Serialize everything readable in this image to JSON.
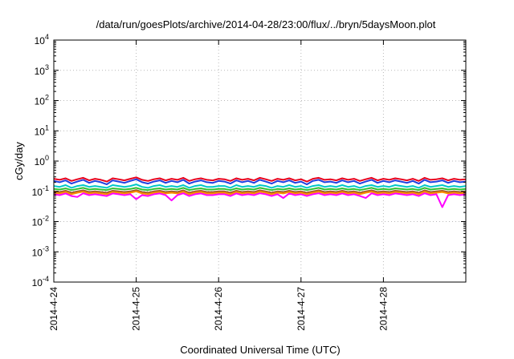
{
  "chart_data": {
    "type": "line",
    "title": "/data/run/goesPlots/archive/2014-04-28/23:00/flux/../bryn/5daysMoon.plot",
    "xlabel": "Coordinated Universal Time (UTC)",
    "ylabel": "cGy/day",
    "yscale": "log",
    "ylim": [
      0.0001,
      10000
    ],
    "xlim": [
      "2014-04-24T00:00",
      "2014-04-29T00:00"
    ],
    "grid": true,
    "x_tick_labels": [
      "2014-4-24",
      "2014-4-25",
      "2014-4-26",
      "2014-4-27",
      "2014-4-28"
    ],
    "y_ticks": [
      {
        "base": "10",
        "exp": "-4",
        "value": 0.0001
      },
      {
        "base": "10",
        "exp": "-3",
        "value": 0.001
      },
      {
        "base": "10",
        "exp": "-2",
        "value": 0.01
      },
      {
        "base": "10",
        "exp": "-1",
        "value": 0.1
      },
      {
        "base": "10",
        "exp": "0",
        "value": 1
      },
      {
        "base": "10",
        "exp": "1",
        "value": 10
      },
      {
        "base": "10",
        "exp": "2",
        "value": 100
      },
      {
        "base": "10",
        "exp": "3",
        "value": 1000
      },
      {
        "base": "10",
        "exp": "4",
        "value": 10000
      }
    ],
    "series": [
      {
        "color": "#e8001c",
        "values": [
          0.26,
          0.24,
          0.27,
          0.22,
          0.25,
          0.28,
          0.23,
          0.26,
          0.24,
          0.21,
          0.27,
          0.25,
          0.23,
          0.26,
          0.29,
          0.24,
          0.22,
          0.25,
          0.27,
          0.23,
          0.26,
          0.24,
          0.28,
          0.22,
          0.25,
          0.27,
          0.24,
          0.23,
          0.26,
          0.25,
          0.22,
          0.27,
          0.24,
          0.26,
          0.23,
          0.28,
          0.25,
          0.22,
          0.26,
          0.24,
          0.27,
          0.23,
          0.25,
          0.21,
          0.26,
          0.28,
          0.24,
          0.25,
          0.23,
          0.27,
          0.24,
          0.26,
          0.22,
          0.25,
          0.28,
          0.23,
          0.26,
          0.24,
          0.27,
          0.25,
          0.23,
          0.26,
          0.22,
          0.28,
          0.24,
          0.25,
          0.27,
          0.23,
          0.26,
          0.24,
          0.25
        ]
      },
      {
        "color": "#1f3fe0",
        "values": [
          0.22,
          0.2,
          0.23,
          0.18,
          0.21,
          0.24,
          0.19,
          0.22,
          0.2,
          0.17,
          0.23,
          0.21,
          0.19,
          0.22,
          0.25,
          0.2,
          0.18,
          0.21,
          0.23,
          0.19,
          0.22,
          0.2,
          0.24,
          0.18,
          0.21,
          0.23,
          0.2,
          0.19,
          0.22,
          0.21,
          0.18,
          0.23,
          0.2,
          0.22,
          0.19,
          0.24,
          0.21,
          0.18,
          0.22,
          0.2,
          0.23,
          0.19,
          0.21,
          0.17,
          0.22,
          0.24,
          0.2,
          0.21,
          0.19,
          0.23,
          0.2,
          0.22,
          0.18,
          0.21,
          0.24,
          0.19,
          0.22,
          0.2,
          0.23,
          0.21,
          0.19,
          0.22,
          0.18,
          0.24,
          0.2,
          0.21,
          0.23,
          0.19,
          0.22,
          0.2,
          0.21
        ]
      },
      {
        "color": "#00c8c8",
        "values": [
          0.15,
          0.14,
          0.16,
          0.13,
          0.15,
          0.16,
          0.14,
          0.15,
          0.14,
          0.13,
          0.16,
          0.15,
          0.14,
          0.15,
          0.17,
          0.14,
          0.13,
          0.15,
          0.16,
          0.14,
          0.15,
          0.14,
          0.16,
          0.13,
          0.15,
          0.16,
          0.14,
          0.14,
          0.15,
          0.15,
          0.13,
          0.16,
          0.14,
          0.15,
          0.14,
          0.16,
          0.15,
          0.13,
          0.15,
          0.14,
          0.16,
          0.14,
          0.15,
          0.13,
          0.15,
          0.16,
          0.14,
          0.15,
          0.14,
          0.16,
          0.14,
          0.15,
          0.13,
          0.15,
          0.16,
          0.14,
          0.15,
          0.14,
          0.16,
          0.15,
          0.14,
          0.15,
          0.13,
          0.16,
          0.14,
          0.15,
          0.16,
          0.14,
          0.15,
          0.14,
          0.15
        ]
      },
      {
        "color": "#30c030",
        "values": [
          0.12,
          0.115,
          0.125,
          0.11,
          0.12,
          0.13,
          0.115,
          0.12,
          0.115,
          0.11,
          0.125,
          0.12,
          0.115,
          0.12,
          0.13,
          0.115,
          0.11,
          0.12,
          0.125,
          0.115,
          0.12,
          0.115,
          0.13,
          0.11,
          0.12,
          0.125,
          0.115,
          0.115,
          0.12,
          0.12,
          0.11,
          0.125,
          0.115,
          0.12,
          0.115,
          0.13,
          0.12,
          0.11,
          0.12,
          0.115,
          0.125,
          0.115,
          0.12,
          0.11,
          0.12,
          0.13,
          0.115,
          0.12,
          0.115,
          0.125,
          0.115,
          0.12,
          0.11,
          0.12,
          0.13,
          0.115,
          0.12,
          0.115,
          0.125,
          0.12,
          0.115,
          0.12,
          0.11,
          0.13,
          0.115,
          0.12,
          0.125,
          0.115,
          0.12,
          0.115,
          0.12
        ]
      },
      {
        "color": "#a05a28",
        "values": [
          0.1,
          0.095,
          0.105,
          0.09,
          0.1,
          0.108,
          0.095,
          0.1,
          0.095,
          0.09,
          0.105,
          0.1,
          0.095,
          0.1,
          0.11,
          0.095,
          0.09,
          0.1,
          0.105,
          0.095,
          0.1,
          0.095,
          0.108,
          0.09,
          0.1,
          0.105,
          0.095,
          0.095,
          0.1,
          0.1,
          0.09,
          0.105,
          0.095,
          0.1,
          0.095,
          0.108,
          0.1,
          0.09,
          0.1,
          0.095,
          0.105,
          0.095,
          0.1,
          0.09,
          0.1,
          0.108,
          0.095,
          0.1,
          0.095,
          0.105,
          0.095,
          0.1,
          0.09,
          0.1,
          0.108,
          0.095,
          0.1,
          0.095,
          0.105,
          0.1,
          0.095,
          0.1,
          0.09,
          0.108,
          0.095,
          0.1,
          0.105,
          0.095,
          0.1,
          0.095,
          0.1
        ]
      },
      {
        "color": "#ff8c00",
        "values": [
          0.09,
          0.085,
          0.095,
          0.08,
          0.09,
          0.097,
          0.085,
          0.09,
          0.085,
          0.08,
          0.095,
          0.09,
          0.085,
          0.09,
          0.1,
          0.085,
          0.08,
          0.09,
          0.095,
          0.085,
          0.09,
          0.085,
          0.097,
          0.08,
          0.09,
          0.095,
          0.085,
          0.085,
          0.09,
          0.09,
          0.08,
          0.095,
          0.085,
          0.09,
          0.085,
          0.097,
          0.09,
          0.08,
          0.09,
          0.085,
          0.095,
          0.085,
          0.09,
          0.08,
          0.09,
          0.097,
          0.085,
          0.09,
          0.085,
          0.095,
          0.085,
          0.09,
          0.08,
          0.09,
          0.097,
          0.085,
          0.09,
          0.085,
          0.095,
          0.09,
          0.085,
          0.09,
          0.08,
          0.097,
          0.085,
          0.09,
          0.095,
          0.085,
          0.09,
          0.085,
          0.09
        ]
      },
      {
        "color": "#ff00ff",
        "values": [
          0.08,
          0.075,
          0.085,
          0.07,
          0.065,
          0.086,
          0.075,
          0.08,
          0.075,
          0.07,
          0.085,
          0.08,
          0.075,
          0.08,
          0.055,
          0.075,
          0.07,
          0.08,
          0.085,
          0.075,
          0.05,
          0.075,
          0.086,
          0.07,
          0.08,
          0.085,
          0.075,
          0.075,
          0.08,
          0.08,
          0.07,
          0.085,
          0.075,
          0.08,
          0.075,
          0.086,
          0.08,
          0.07,
          0.08,
          0.06,
          0.085,
          0.075,
          0.08,
          0.07,
          0.08,
          0.086,
          0.075,
          0.08,
          0.075,
          0.085,
          0.075,
          0.08,
          0.07,
          0.06,
          0.086,
          0.075,
          0.08,
          0.075,
          0.085,
          0.08,
          0.075,
          0.08,
          0.07,
          0.086,
          0.075,
          0.08,
          0.03,
          0.075,
          0.08,
          0.075,
          0.08
        ]
      }
    ]
  }
}
